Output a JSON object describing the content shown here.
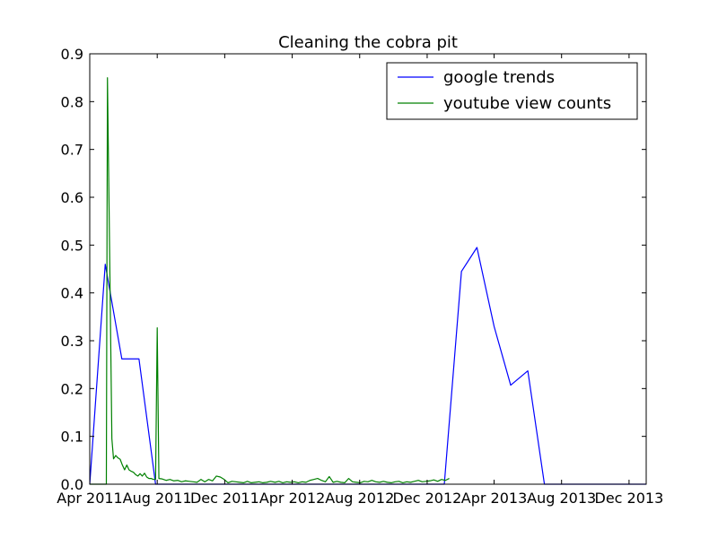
{
  "chart_data": {
    "type": "line",
    "title": "Cleaning the cobra pit",
    "xlabel": "",
    "ylabel": "",
    "x_range": [
      "2011-04-01",
      "2014-01-01"
    ],
    "ylim": [
      0,
      0.9
    ],
    "grid": false,
    "legend_position": "top-right",
    "x_ticks": [
      {
        "date": "2011-04-01",
        "label": "Apr 2011"
      },
      {
        "date": "2011-08-01",
        "label": "Aug 2011"
      },
      {
        "date": "2011-12-01",
        "label": "Dec 2011"
      },
      {
        "date": "2012-04-01",
        "label": "Apr 2012"
      },
      {
        "date": "2012-08-01",
        "label": "Aug 2012"
      },
      {
        "date": "2012-12-01",
        "label": "Dec 2012"
      },
      {
        "date": "2013-04-01",
        "label": "Apr 2013"
      },
      {
        "date": "2013-08-01",
        "label": "Aug 2013"
      },
      {
        "date": "2013-12-01",
        "label": "Dec 2013"
      }
    ],
    "y_ticks": [
      "0.0",
      "0.1",
      "0.2",
      "0.3",
      "0.4",
      "0.5",
      "0.6",
      "0.7",
      "0.8",
      "0.9"
    ],
    "series": [
      {
        "name": "google trends",
        "color": "#0000ff",
        "points": [
          [
            "2011-04-01",
            0.0
          ],
          [
            "2011-04-29",
            0.46
          ],
          [
            "2011-05-29",
            0.262
          ],
          [
            "2011-06-29",
            0.262
          ],
          [
            "2011-07-29",
            0.0
          ],
          [
            "2013-01-01",
            0.0
          ],
          [
            "2013-02-01",
            0.445
          ],
          [
            "2013-03-01",
            0.495
          ],
          [
            "2013-04-01",
            0.33
          ],
          [
            "2013-05-01",
            0.207
          ],
          [
            "2013-06-01",
            0.237
          ],
          [
            "2013-07-01",
            0.0
          ],
          [
            "2014-01-01",
            0.0
          ]
        ]
      },
      {
        "name": "youtube view counts",
        "color": "#008000",
        "points": [
          [
            "2011-04-01",
            0.0
          ],
          [
            "2011-05-01",
            0.0
          ],
          [
            "2011-05-03",
            0.85
          ],
          [
            "2011-05-07",
            0.48
          ],
          [
            "2011-05-11",
            0.095
          ],
          [
            "2011-05-14",
            0.053
          ],
          [
            "2011-05-18",
            0.06
          ],
          [
            "2011-05-22",
            0.055
          ],
          [
            "2011-05-26",
            0.052
          ],
          [
            "2011-05-30",
            0.04
          ],
          [
            "2011-06-03",
            0.03
          ],
          [
            "2011-06-07",
            0.04
          ],
          [
            "2011-06-11",
            0.03
          ],
          [
            "2011-06-15",
            0.027
          ],
          [
            "2011-06-19",
            0.025
          ],
          [
            "2011-06-23",
            0.02
          ],
          [
            "2011-06-27",
            0.017
          ],
          [
            "2011-07-01",
            0.022
          ],
          [
            "2011-07-05",
            0.017
          ],
          [
            "2011-07-09",
            0.023
          ],
          [
            "2011-07-13",
            0.015
          ],
          [
            "2011-07-17",
            0.012
          ],
          [
            "2011-07-21",
            0.012
          ],
          [
            "2011-07-25",
            0.01
          ],
          [
            "2011-07-29",
            0.01
          ],
          [
            "2011-08-01",
            0.327
          ],
          [
            "2011-08-04",
            0.012
          ],
          [
            "2011-08-10",
            0.011
          ],
          [
            "2011-08-17",
            0.008
          ],
          [
            "2011-08-24",
            0.01
          ],
          [
            "2011-08-31",
            0.007
          ],
          [
            "2011-09-07",
            0.008
          ],
          [
            "2011-09-14",
            0.005
          ],
          [
            "2011-09-21",
            0.007
          ],
          [
            "2011-09-28",
            0.006
          ],
          [
            "2011-10-05",
            0.005
          ],
          [
            "2011-10-12",
            0.004
          ],
          [
            "2011-10-19",
            0.01
          ],
          [
            "2011-10-26",
            0.005
          ],
          [
            "2011-11-02",
            0.01
          ],
          [
            "2011-11-09",
            0.007
          ],
          [
            "2011-11-16",
            0.017
          ],
          [
            "2011-11-23",
            0.015
          ],
          [
            "2011-11-30",
            0.01
          ],
          [
            "2011-12-07",
            0.003
          ],
          [
            "2011-12-14",
            0.006
          ],
          [
            "2011-12-21",
            0.005
          ],
          [
            "2011-12-28",
            0.004
          ],
          [
            "2012-01-04",
            0.003
          ],
          [
            "2012-01-11",
            0.006
          ],
          [
            "2012-01-18",
            0.003
          ],
          [
            "2012-01-25",
            0.004
          ],
          [
            "2012-02-01",
            0.005
          ],
          [
            "2012-02-08",
            0.003
          ],
          [
            "2012-02-15",
            0.004
          ],
          [
            "2012-02-22",
            0.006
          ],
          [
            "2012-03-01",
            0.004
          ],
          [
            "2012-03-08",
            0.006
          ],
          [
            "2012-03-15",
            0.003
          ],
          [
            "2012-03-22",
            0.005
          ],
          [
            "2012-03-29",
            0.004
          ],
          [
            "2012-04-05",
            0.005
          ],
          [
            "2012-04-12",
            0.003
          ],
          [
            "2012-04-19",
            0.005
          ],
          [
            "2012-04-26",
            0.004
          ],
          [
            "2012-05-03",
            0.008
          ],
          [
            "2012-05-10",
            0.01
          ],
          [
            "2012-05-17",
            0.012
          ],
          [
            "2012-05-24",
            0.008
          ],
          [
            "2012-05-31",
            0.005
          ],
          [
            "2012-06-07",
            0.016
          ],
          [
            "2012-06-14",
            0.004
          ],
          [
            "2012-06-21",
            0.006
          ],
          [
            "2012-06-28",
            0.004
          ],
          [
            "2012-07-05",
            0.003
          ],
          [
            "2012-07-12",
            0.012
          ],
          [
            "2012-07-19",
            0.005
          ],
          [
            "2012-07-26",
            0.004
          ],
          [
            "2012-08-02",
            0.003
          ],
          [
            "2012-08-09",
            0.006
          ],
          [
            "2012-08-16",
            0.005
          ],
          [
            "2012-08-23",
            0.008
          ],
          [
            "2012-08-30",
            0.005
          ],
          [
            "2012-09-06",
            0.004
          ],
          [
            "2012-09-13",
            0.006
          ],
          [
            "2012-09-20",
            0.004
          ],
          [
            "2012-09-27",
            0.003
          ],
          [
            "2012-10-04",
            0.005
          ],
          [
            "2012-10-11",
            0.006
          ],
          [
            "2012-10-18",
            0.003
          ],
          [
            "2012-10-25",
            0.005
          ],
          [
            "2012-11-01",
            0.004
          ],
          [
            "2012-11-08",
            0.006
          ],
          [
            "2012-11-15",
            0.008
          ],
          [
            "2012-11-22",
            0.005
          ],
          [
            "2012-11-29",
            0.006
          ],
          [
            "2012-12-06",
            0.007
          ],
          [
            "2012-12-13",
            0.009
          ],
          [
            "2012-12-20",
            0.006
          ],
          [
            "2012-12-27",
            0.01
          ],
          [
            "2013-01-03",
            0.008
          ],
          [
            "2013-01-10",
            0.012
          ]
        ]
      }
    ]
  }
}
